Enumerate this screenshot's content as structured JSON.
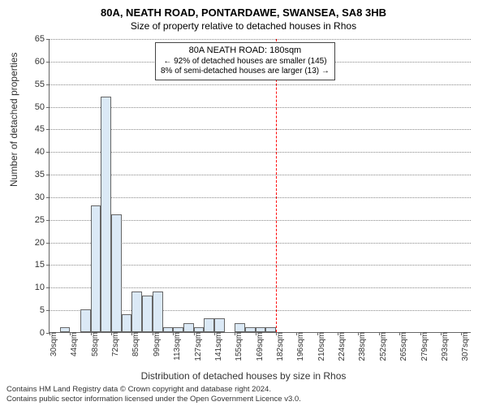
{
  "title": "80A, NEATH ROAD, PONTARDAWE, SWANSEA, SA8 3HB",
  "subtitle": "Size of property relative to detached houses in Rhos",
  "chart": {
    "type": "histogram",
    "ylabel": "Number of detached properties",
    "xlabel": "Distribution of detached houses by size in Rhos",
    "ylim": [
      0,
      65
    ],
    "ytick_step": 5,
    "yticks": [
      0,
      5,
      10,
      15,
      20,
      25,
      30,
      35,
      40,
      45,
      50,
      55,
      60,
      65
    ],
    "xticks": [
      "30sqm",
      "44sqm",
      "58sqm",
      "72sqm",
      "85sqm",
      "99sqm",
      "113sqm",
      "127sqm",
      "141sqm",
      "155sqm",
      "169sqm",
      "182sqm",
      "196sqm",
      "210sqm",
      "224sqm",
      "238sqm",
      "252sqm",
      "265sqm",
      "279sqm",
      "293sqm",
      "307sqm"
    ],
    "values": [
      0,
      1,
      0,
      5,
      28,
      52,
      26,
      4,
      9,
      8,
      9,
      1,
      1,
      2,
      1,
      3,
      3,
      0,
      2,
      1,
      1,
      1,
      0,
      0,
      0,
      0,
      0,
      0,
      0,
      0,
      0,
      0,
      0,
      0,
      0,
      0,
      0,
      0,
      0,
      0,
      0
    ],
    "bar_fill": "#dbe9f6",
    "bar_stroke": "#666666",
    "grid_color": "#888888",
    "background_color": "#ffffff",
    "reference_line": {
      "bin_index": 22,
      "color": "#ff0000",
      "style": "dashed"
    },
    "annotation": {
      "title": "80A NEATH ROAD: 180sqm",
      "line1": "← 92% of detached houses are smaller (145)",
      "line2": "8% of semi-detached houses are larger (13) →",
      "border_color": "#444444",
      "bg_color": "#ffffff"
    }
  },
  "attribution": {
    "line1": "Contains HM Land Registry data © Crown copyright and database right 2024.",
    "line2": "Contains public sector information licensed under the Open Government Licence v3.0."
  }
}
